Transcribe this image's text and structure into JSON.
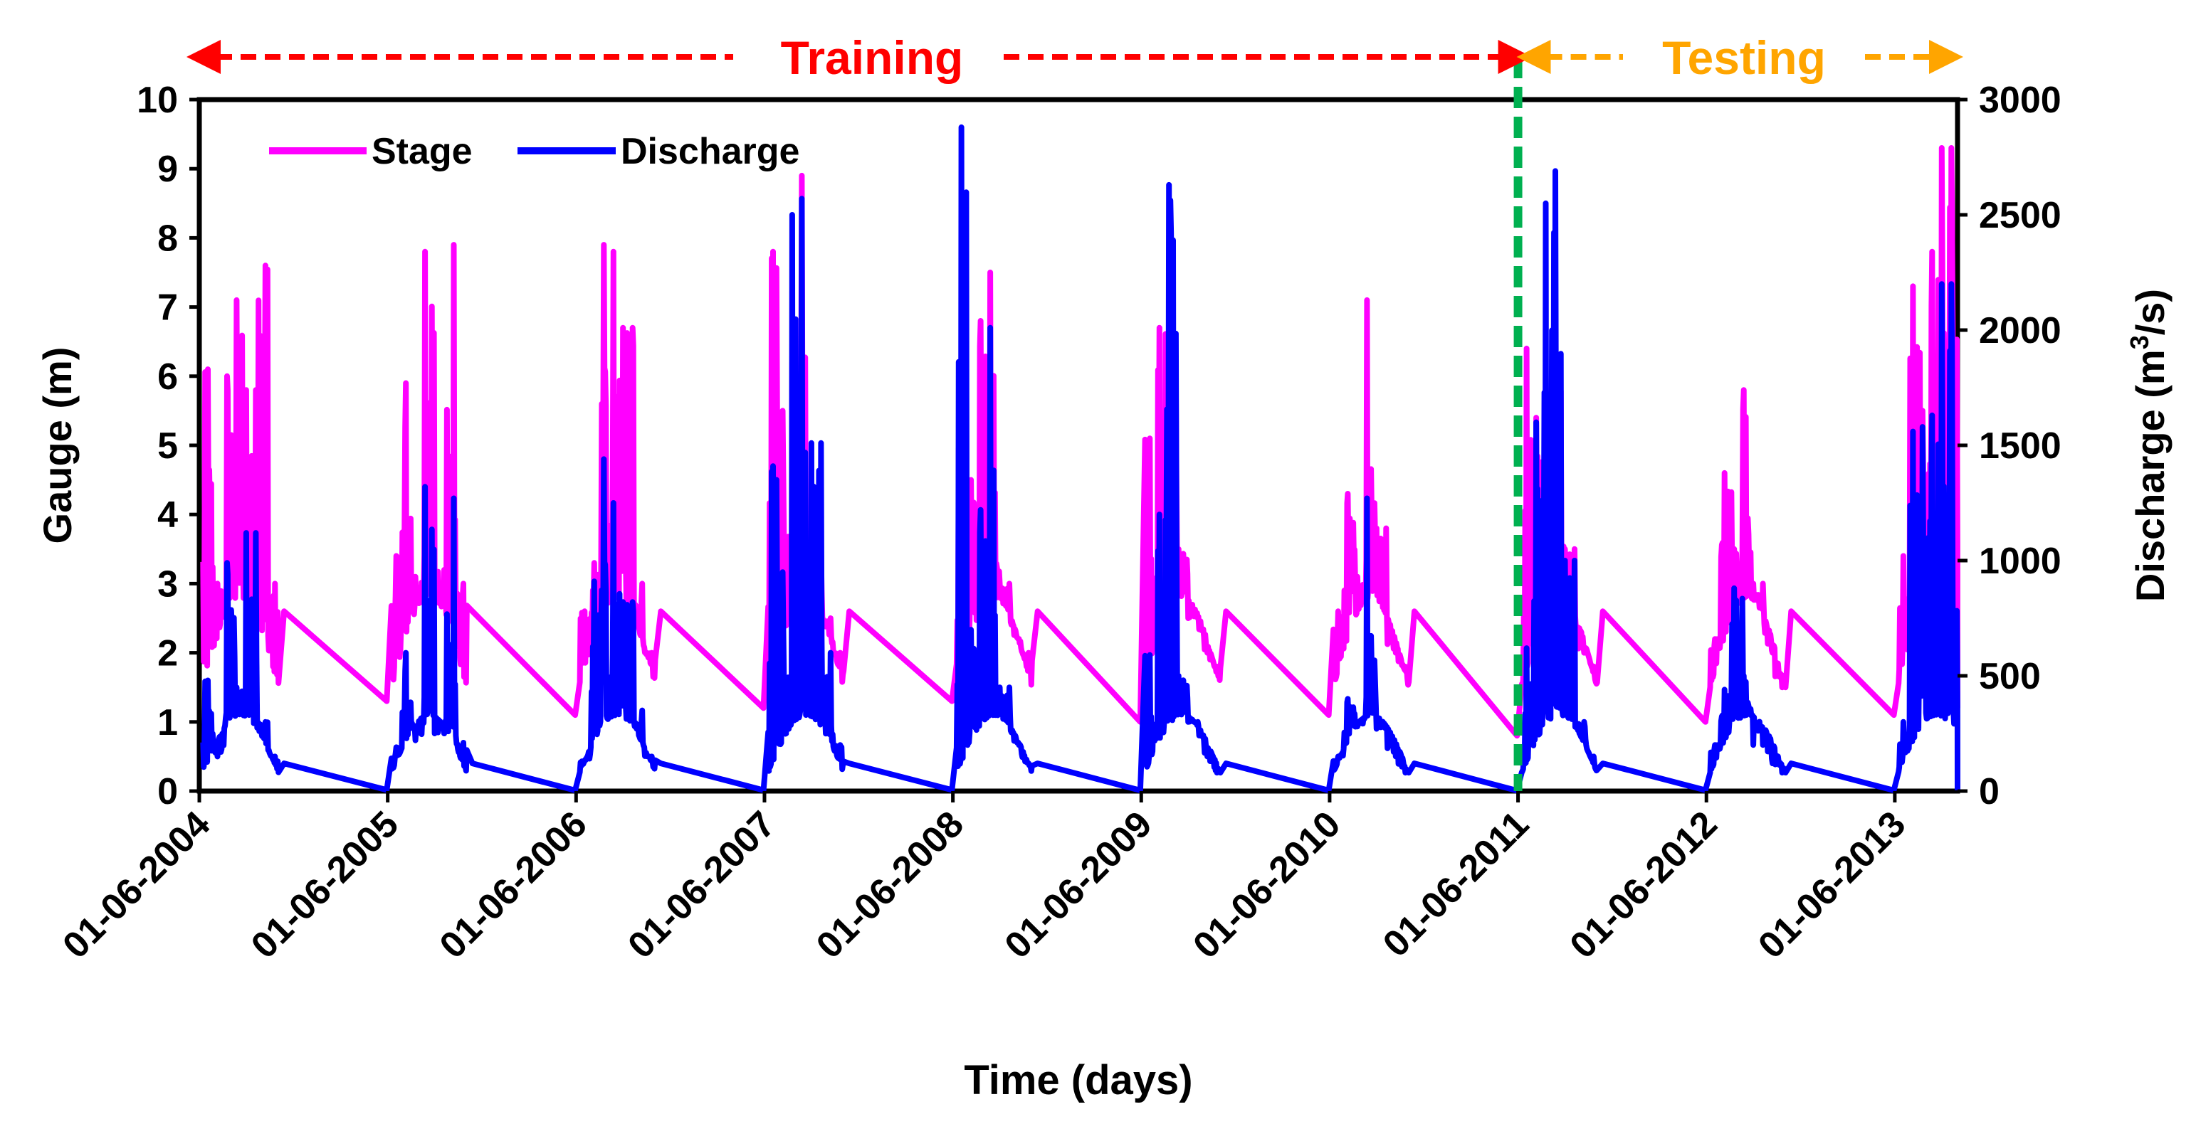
{
  "chart_data": {
    "type": "line",
    "xlabel": "Time (days)",
    "ylabel_left": "Gauge (m)",
    "ylabel_right_prefix": "Discharge (m",
    "ylabel_right_sup": "3",
    "ylabel_right_suffix": "/s)",
    "x_range": [
      2004.417,
      2013.75
    ],
    "ylim_left": [
      0,
      10
    ],
    "ylim_right": [
      0,
      3000
    ],
    "yticks_left": [
      "0",
      "1",
      "2",
      "3",
      "4",
      "5",
      "6",
      "7",
      "8",
      "9",
      "10"
    ],
    "yticks_right": [
      "0",
      "500",
      "1000",
      "1500",
      "2000",
      "2500",
      "3000"
    ],
    "xtick_labels": [
      "01-06-2004",
      "01-06-2005",
      "01-06-2006",
      "01-06-2007",
      "01-06-2008",
      "01-06-2009",
      "01-06-2010",
      "01-06-2011",
      "01-06-2012",
      "01-06-2013"
    ],
    "split_at": 2011.417,
    "legend": [
      "Stage",
      "Discharge"
    ],
    "legend_position": "top-left",
    "colors": {
      "stage": "#ff00ff",
      "discharge": "#0000ff",
      "training": "#ff0000",
      "testing": "#ffa500",
      "split_line": "#00b050"
    },
    "annotations": {
      "training": "Training",
      "testing": "Testing"
    },
    "monsoon_peaks": {
      "stage": [
        [
          6.1,
          3.0,
          6.0,
          7.1,
          5.8,
          7.6,
          3.0
        ],
        [
          3.4,
          5.9,
          3.1,
          7.8,
          3.2,
          7.9,
          3.0
        ],
        [
          2.6,
          3.3,
          7.9,
          7.8,
          6.7,
          3.0,
          2.0
        ],
        [
          7.8,
          5.5,
          6.2,
          8.9,
          3.5,
          2.5,
          2.0
        ],
        [
          6.5,
          4.5,
          6.8,
          7.5,
          3.0,
          2.2,
          2.0
        ],
        [
          5.1,
          6.7,
          6.8,
          3.5,
          2.5,
          2.0,
          1.8
        ],
        [
          2.6,
          4.3,
          3.1,
          7.1,
          3.8,
          2.0,
          1.8
        ],
        [
          6.4,
          5.4,
          6.1,
          7.0,
          3.5,
          2.0,
          1.8
        ],
        [
          2.2,
          4.6,
          3.5,
          5.8,
          3.0,
          2.0,
          1.5
        ],
        [
          3.4,
          7.3,
          5.5,
          7.8,
          9.3,
          7.9,
          2.0
        ]
      ],
      "discharge": [
        [
          480,
          150,
          990,
          450,
          1120,
          300,
          150
        ],
        [
          190,
          600,
          220,
          1320,
          250,
          1270,
          210
        ],
        [
          130,
          910,
          1440,
          1250,
          820,
          350,
          150
        ],
        [
          1410,
          950,
          2500,
          2570,
          1510,
          600,
          200
        ],
        [
          2880,
          700,
          1220,
          2010,
          450,
          200,
          120
        ],
        [
          590,
          1200,
          2630,
          500,
          300,
          150,
          80
        ],
        [
          150,
          400,
          280,
          1270,
          270,
          150,
          80
        ],
        [
          620,
          1600,
          2550,
          2690,
          1000,
          300,
          150
        ],
        [
          200,
          440,
          880,
          500,
          200,
          120,
          80
        ],
        [
          300,
          1560,
          1580,
          1630,
          2200,
          1000,
          300
        ]
      ]
    },
    "monsoon_lows": {
      "stage": [
        1.3,
        1.1,
        1.2,
        1.3,
        1.0,
        1.1,
        0.8,
        1.0,
        1.1,
        1.2
      ],
      "discharge": [
        5,
        3,
        4,
        5,
        3,
        3,
        2,
        4,
        3,
        4
      ]
    }
  }
}
